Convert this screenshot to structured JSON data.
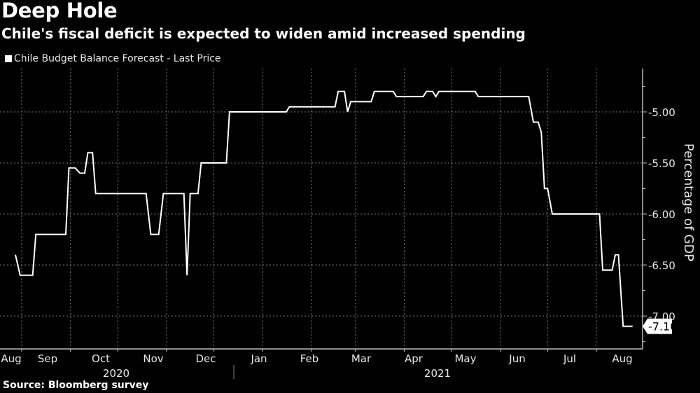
{
  "header": {
    "title": "Deep Hole",
    "subtitle": "Chile's fiscal deficit is expected to widen amid increased spending"
  },
  "legend": {
    "label": "Chile Budget Balance Forecast - Last Price",
    "color": "#ffffff"
  },
  "footer": {
    "source": "Source: Bloomberg survey"
  },
  "axis": {
    "y_ticks": [
      "-5.00",
      "-5.50",
      "-6.00",
      "-6.50",
      "-7.00"
    ],
    "y_label": "Percentage of GDP",
    "x_months": [
      "Aug",
      "Sep",
      "Oct",
      "Nov",
      "Dec",
      "Jan",
      "Feb",
      "Mar",
      "Apr",
      "May",
      "Jun",
      "Jul",
      "Aug"
    ],
    "x_years": [
      "2020",
      "2021"
    ],
    "last_value_label": "-7.10"
  },
  "chart_data": {
    "type": "line",
    "title": "Deep Hole",
    "subtitle": "Chile's fiscal deficit is expected to widen amid increased spending",
    "xlabel": "",
    "ylabel": "Percentage of GDP",
    "ylim": [
      -7.3,
      -4.6
    ],
    "y_ticks": [
      -5.0,
      -5.5,
      -6.0,
      -6.5,
      -7.0
    ],
    "grid": true,
    "legend_position": "top-left",
    "x_tick_labels": [
      "Aug",
      "Sep",
      "Oct",
      "Nov",
      "Dec",
      "Jan",
      "Feb",
      "Mar",
      "Apr",
      "May",
      "Jun",
      "Jul",
      "Aug"
    ],
    "x_years": [
      "2020",
      "2021"
    ],
    "series": [
      {
        "name": "Chile Budget Balance Forecast - Last Price",
        "color": "#ffffff",
        "points": [
          [
            "2020-07-28",
            -6.4
          ],
          [
            "2020-07-31",
            -6.6
          ],
          [
            "2020-08-08",
            -6.6
          ],
          [
            "2020-08-10",
            -6.2
          ],
          [
            "2020-08-29",
            -6.2
          ],
          [
            "2020-08-31",
            -5.55
          ],
          [
            "2020-09-04",
            -5.55
          ],
          [
            "2020-09-07",
            -5.6
          ],
          [
            "2020-09-10",
            -5.6
          ],
          [
            "2020-09-12",
            -5.4
          ],
          [
            "2020-09-15",
            -5.4
          ],
          [
            "2020-09-17",
            -5.8
          ],
          [
            "2020-10-19",
            -5.8
          ],
          [
            "2020-10-22",
            -6.2
          ],
          [
            "2020-10-27",
            -6.2
          ],
          [
            "2020-10-30",
            -5.8
          ],
          [
            "2020-11-12",
            -5.8
          ],
          [
            "2020-11-14",
            -6.6
          ],
          [
            "2020-11-16",
            -5.8
          ],
          [
            "2020-11-21",
            -5.8
          ],
          [
            "2020-11-23",
            -5.5
          ],
          [
            "2020-12-09",
            -5.5
          ],
          [
            "2020-12-11",
            -5.0
          ],
          [
            "2021-01-16",
            -5.0
          ],
          [
            "2021-01-18",
            -4.95
          ],
          [
            "2021-02-16",
            -4.95
          ],
          [
            "2021-02-18",
            -4.8
          ],
          [
            "2021-02-22",
            -4.8
          ],
          [
            "2021-02-24",
            -5.0
          ],
          [
            "2021-02-26",
            -4.9
          ],
          [
            "2021-03-11",
            -4.9
          ],
          [
            "2021-03-13",
            -4.8
          ],
          [
            "2021-03-25",
            -4.8
          ],
          [
            "2021-03-27",
            -4.85
          ],
          [
            "2021-04-13",
            -4.85
          ],
          [
            "2021-04-15",
            -4.8
          ],
          [
            "2021-04-19",
            -4.8
          ],
          [
            "2021-04-21",
            -4.85
          ],
          [
            "2021-04-23",
            -4.8
          ],
          [
            "2021-05-16",
            -4.8
          ],
          [
            "2021-05-18",
            -4.85
          ],
          [
            "2021-06-19",
            -4.85
          ],
          [
            "2021-06-22",
            -5.1
          ],
          [
            "2021-06-25",
            -5.1
          ],
          [
            "2021-06-27",
            -5.2
          ],
          [
            "2021-06-29",
            -5.75
          ],
          [
            "2021-07-01",
            -5.75
          ],
          [
            "2021-07-04",
            -6.0
          ],
          [
            "2021-08-03",
            -6.0
          ],
          [
            "2021-08-05",
            -6.55
          ],
          [
            "2021-08-11",
            -6.55
          ],
          [
            "2021-08-13",
            -6.4
          ],
          [
            "2021-08-15",
            -6.4
          ],
          [
            "2021-08-18",
            -7.1
          ],
          [
            "2021-08-24",
            -7.1
          ]
        ]
      }
    ],
    "last_value": -7.1
  }
}
